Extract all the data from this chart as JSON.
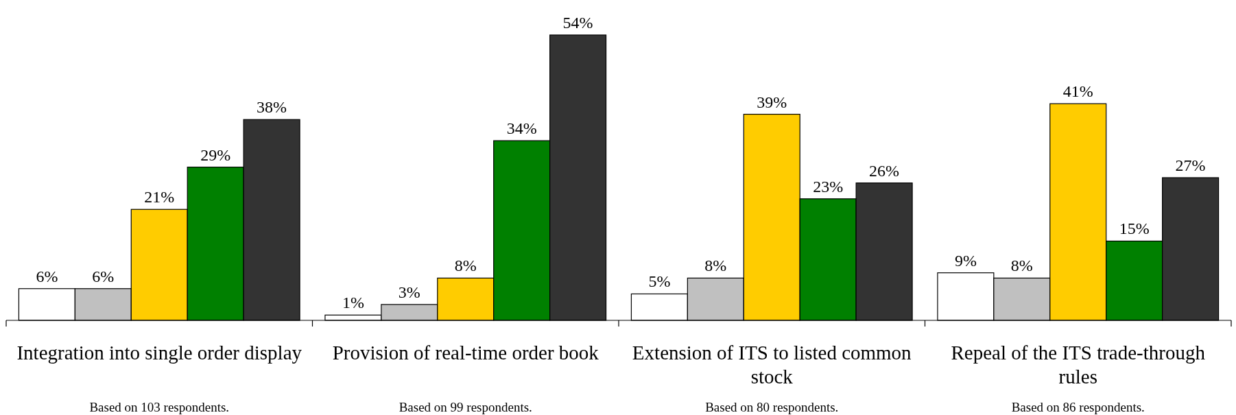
{
  "chart_data": {
    "type": "bar",
    "categories": [
      "Integration into single order display",
      "Provision of real-time order book",
      "Extension of ITS to listed common stock",
      "Repeal of the ITS trade-through rules"
    ],
    "series": [
      {
        "color": "#ffffff",
        "values": [
          6,
          1,
          5,
          9
        ],
        "value_labels": [
          "6%",
          "1%",
          "5%",
          "9%"
        ]
      },
      {
        "color": "#c0c0c0",
        "values": [
          6,
          3,
          8,
          8
        ],
        "value_labels": [
          "6%",
          "3%",
          "8%",
          "8%"
        ]
      },
      {
        "color": "#ffcc00",
        "values": [
          21,
          8,
          39,
          41
        ],
        "value_labels": [
          "21%",
          "8%",
          "39%",
          "41%"
        ]
      },
      {
        "color": "#008000",
        "values": [
          29,
          34,
          23,
          15
        ],
        "value_labels": [
          "29%",
          "34%",
          "23%",
          "15%"
        ]
      },
      {
        "color": "#333333",
        "values": [
          38,
          54,
          26,
          27
        ],
        "value_labels": [
          "38%",
          "54%",
          "26%",
          "27%"
        ]
      }
    ],
    "annotations": [
      "Based on 103  respondents.",
      "Based on 99  respondents.",
      "Based on 80  respondents.",
      "Based on 86  respondents."
    ],
    "tick_labels": "x"
  }
}
